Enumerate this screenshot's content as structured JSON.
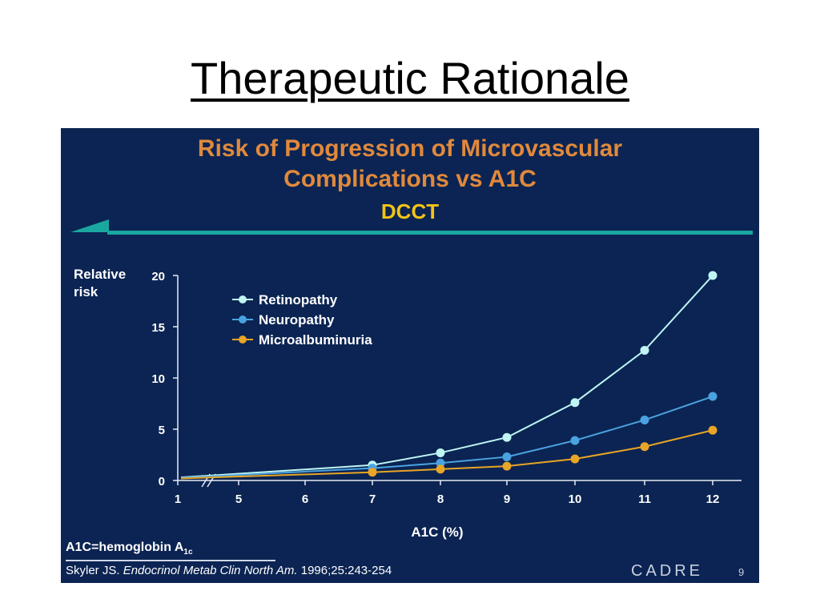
{
  "slide": {
    "title": "Therapeutic Rationale",
    "footnote_main": "A1C=hemoglobin A",
    "footnote_sub": "1c",
    "citation_author": "Skyler JS. ",
    "citation_journal": "Endocrinol Metab Clin North Am.",
    "citation_ref": " 1996;25:243-254",
    "logo": "CADRE",
    "page_number": "9"
  },
  "colors": {
    "panel_bg": "#0b2453",
    "title_orange": "#e0893c",
    "subtitle_yellow": "#f3c315",
    "divider_teal": "#1aa7a0",
    "retinopathy": "#bff6f4",
    "neuropathy": "#4aa3e0",
    "microalbuminuria": "#e9a525"
  },
  "chart_data": {
    "type": "line",
    "title": "Risk of Progression of Microvascular",
    "title_line2": "Complications vs A1C",
    "subtitle": "DCCT",
    "xlabel": "A1C (%)",
    "ylabel": "Relative risk",
    "x_ticks": [
      "1",
      "5",
      "6",
      "7",
      "8",
      "9",
      "10",
      "11",
      "12"
    ],
    "y_ticks": [
      "0",
      "5",
      "10",
      "15",
      "20"
    ],
    "ylim": [
      0,
      20
    ],
    "xlim": [
      4,
      12
    ],
    "axis_break_between": [
      "1",
      "5"
    ],
    "legend_position": "top-left",
    "grid": false,
    "series": [
      {
        "name": "Retinopathy",
        "color_key": "retinopathy",
        "x": [
          7,
          8,
          9,
          10,
          11,
          12
        ],
        "y": [
          1.5,
          2.7,
          4.2,
          7.6,
          12.7,
          20.0
        ],
        "line_start_y": 0.3
      },
      {
        "name": "Neuropathy",
        "color_key": "neuropathy",
        "x": [
          7,
          8,
          9,
          10,
          11,
          12
        ],
        "y": [
          1.2,
          1.7,
          2.3,
          3.9,
          5.9,
          8.2
        ],
        "line_start_y": 0.25
      },
      {
        "name": "Microalbuminuria",
        "color_key": "microalbuminuria",
        "x": [
          7,
          8,
          9,
          10,
          11,
          12
        ],
        "y": [
          0.8,
          1.1,
          1.4,
          2.1,
          3.3,
          4.9
        ],
        "line_start_y": 0.2
      }
    ]
  }
}
